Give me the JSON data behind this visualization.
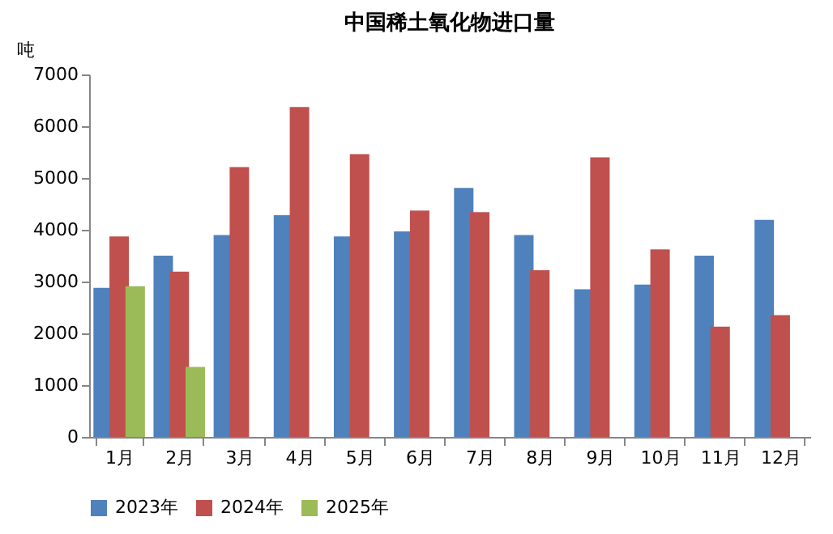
{
  "chart_data": {
    "type": "bar",
    "title": "中国稀土氧化物进口量",
    "ylabel": "吨",
    "categories": [
      "1月",
      "2月",
      "3月",
      "4月",
      "5月",
      "6月",
      "7月",
      "8月",
      "9月",
      "10月",
      "11月",
      "12月"
    ],
    "series": [
      {
        "name": "2023年",
        "color": "#4f81bd",
        "values": [
          2880,
          3500,
          3900,
          4280,
          3870,
          3970,
          4810,
          3900,
          2850,
          2940,
          3500,
          4190
        ]
      },
      {
        "name": "2024年",
        "color": "#c0504d",
        "values": [
          3870,
          3190,
          5210,
          6370,
          5460,
          4370,
          4340,
          3220,
          5400,
          3620,
          2130,
          2350
        ]
      },
      {
        "name": "2025年",
        "color": "#9bbb59",
        "values": [
          2910,
          1350,
          null,
          null,
          null,
          null,
          null,
          null,
          null,
          null,
          null,
          null
        ]
      }
    ],
    "ylim": [
      0,
      7000
    ],
    "yticks": [
      0,
      1000,
      2000,
      3000,
      4000,
      5000,
      6000,
      7000
    ],
    "legend": "bottom"
  }
}
